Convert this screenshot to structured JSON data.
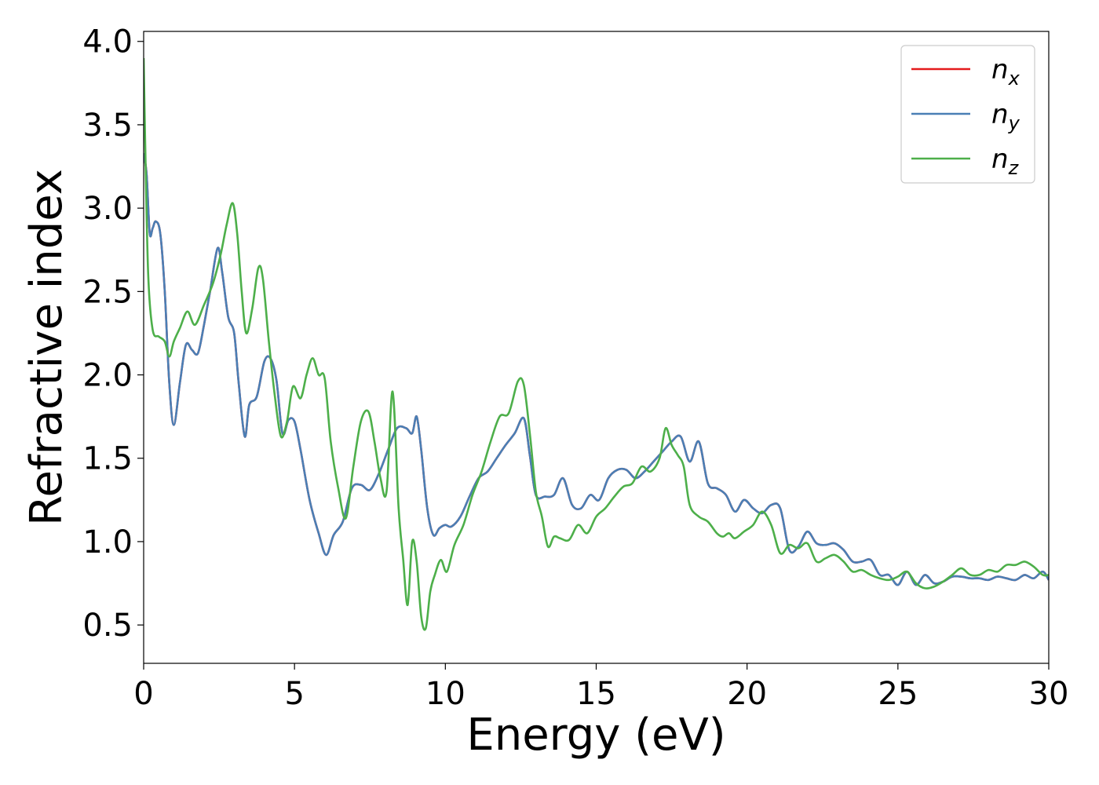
{
  "chart_data": {
    "type": "line",
    "title": "",
    "xlabel": "Energy (eV)",
    "ylabel": "Refractive index",
    "xlim": [
      0,
      30
    ],
    "ylim": [
      0.27,
      4.06
    ],
    "xticks": [
      0,
      5,
      10,
      15,
      20,
      25,
      30
    ],
    "xtick_labels": [
      "0",
      "5",
      "10",
      "15",
      "20",
      "25",
      "30"
    ],
    "yticks": [
      0.5,
      1.0,
      1.5,
      2.0,
      2.5,
      3.0,
      3.5,
      4.0
    ],
    "ytick_labels": [
      "0.5",
      "1.0",
      "1.5",
      "2.0",
      "2.5",
      "3.0",
      "3.5",
      "4.0"
    ],
    "grid": false,
    "legend_position": "top-right",
    "legend": [
      {
        "base": "n",
        "sub": "x",
        "color": "#e41a1c"
      },
      {
        "base": "n",
        "sub": "y",
        "color": "#4a7fb5"
      },
      {
        "base": "n",
        "sub": "z",
        "color": "#4daf4a"
      }
    ],
    "series": [
      {
        "name": "n_x",
        "color": "#e41a1c",
        "x": [
          0,
          0.1,
          0.2,
          0.3,
          0.4,
          0.55,
          0.7,
          0.85,
          1.0,
          1.2,
          1.4,
          1.6,
          1.8,
          2.0,
          2.2,
          2.45,
          2.6,
          2.8,
          3.0,
          3.15,
          3.35,
          3.5,
          3.75,
          4.0,
          4.2,
          4.4,
          4.6,
          4.8,
          5.0,
          5.2,
          5.5,
          5.8,
          6.05,
          6.3,
          6.6,
          6.9,
          7.2,
          7.5,
          7.8,
          8.1,
          8.4,
          8.7,
          8.9,
          9.05,
          9.2,
          9.4,
          9.6,
          9.8,
          10.0,
          10.2,
          10.5,
          10.8,
          11.1,
          11.4,
          11.7,
          12.0,
          12.3,
          12.6,
          12.8,
          13.0,
          13.3,
          13.6,
          13.9,
          14.2,
          14.5,
          14.8,
          15.1,
          15.4,
          15.7,
          16.0,
          16.3,
          16.6,
          16.9,
          17.2,
          17.5,
          17.8,
          18.1,
          18.4,
          18.7,
          19.0,
          19.3,
          19.6,
          19.9,
          20.2,
          20.5,
          20.8,
          21.1,
          21.4,
          21.7,
          22.0,
          22.3,
          22.6,
          22.9,
          23.2,
          23.5,
          23.8,
          24.1,
          24.4,
          24.7,
          25.0,
          25.3,
          25.6,
          25.9,
          26.2,
          26.5,
          26.8,
          27.1,
          27.4,
          27.7,
          28.0,
          28.3,
          28.6,
          28.9,
          29.2,
          29.5,
          29.8,
          30.0
        ],
        "y": [
          3.33,
          3.2,
          2.85,
          2.88,
          2.92,
          2.85,
          2.5,
          1.95,
          1.7,
          1.95,
          2.18,
          2.15,
          2.13,
          2.3,
          2.5,
          2.76,
          2.62,
          2.35,
          2.25,
          1.95,
          1.63,
          1.82,
          1.87,
          2.08,
          2.1,
          1.97,
          1.65,
          1.73,
          1.72,
          1.55,
          1.25,
          1.05,
          0.92,
          1.04,
          1.12,
          1.32,
          1.34,
          1.31,
          1.41,
          1.55,
          1.68,
          1.68,
          1.65,
          1.75,
          1.55,
          1.2,
          1.04,
          1.08,
          1.1,
          1.09,
          1.15,
          1.27,
          1.38,
          1.42,
          1.5,
          1.58,
          1.65,
          1.74,
          1.52,
          1.28,
          1.27,
          1.28,
          1.38,
          1.22,
          1.2,
          1.28,
          1.25,
          1.38,
          1.43,
          1.43,
          1.38,
          1.42,
          1.48,
          1.54,
          1.6,
          1.63,
          1.48,
          1.6,
          1.35,
          1.32,
          1.28,
          1.18,
          1.25,
          1.2,
          1.17,
          1.22,
          1.2,
          0.95,
          0.97,
          1.06,
          0.99,
          0.98,
          0.99,
          0.95,
          0.88,
          0.88,
          0.89,
          0.8,
          0.8,
          0.74,
          0.82,
          0.74,
          0.8,
          0.75,
          0.76,
          0.79,
          0.79,
          0.78,
          0.78,
          0.77,
          0.79,
          0.78,
          0.77,
          0.8,
          0.78,
          0.82,
          0.77
        ]
      },
      {
        "name": "n_y",
        "color": "#4a7fb5",
        "x": [
          0,
          0.1,
          0.2,
          0.3,
          0.4,
          0.55,
          0.7,
          0.85,
          1.0,
          1.2,
          1.4,
          1.6,
          1.8,
          2.0,
          2.2,
          2.45,
          2.6,
          2.8,
          3.0,
          3.15,
          3.35,
          3.5,
          3.75,
          4.0,
          4.2,
          4.4,
          4.6,
          4.8,
          5.0,
          5.2,
          5.5,
          5.8,
          6.05,
          6.3,
          6.6,
          6.9,
          7.2,
          7.5,
          7.8,
          8.1,
          8.4,
          8.7,
          8.9,
          9.05,
          9.2,
          9.4,
          9.6,
          9.8,
          10.0,
          10.2,
          10.5,
          10.8,
          11.1,
          11.4,
          11.7,
          12.0,
          12.3,
          12.6,
          12.8,
          13.0,
          13.3,
          13.6,
          13.9,
          14.2,
          14.5,
          14.8,
          15.1,
          15.4,
          15.7,
          16.0,
          16.3,
          16.6,
          16.9,
          17.2,
          17.5,
          17.8,
          18.1,
          18.4,
          18.7,
          19.0,
          19.3,
          19.6,
          19.9,
          20.2,
          20.5,
          20.8,
          21.1,
          21.4,
          21.7,
          22.0,
          22.3,
          22.6,
          22.9,
          23.2,
          23.5,
          23.8,
          24.1,
          24.4,
          24.7,
          25.0,
          25.3,
          25.6,
          25.9,
          26.2,
          26.5,
          26.8,
          27.1,
          27.4,
          27.7,
          28.0,
          28.3,
          28.6,
          28.9,
          29.2,
          29.5,
          29.8,
          30.0
        ],
        "y": [
          3.33,
          3.2,
          2.85,
          2.88,
          2.92,
          2.85,
          2.5,
          1.95,
          1.7,
          1.95,
          2.18,
          2.15,
          2.13,
          2.3,
          2.5,
          2.76,
          2.62,
          2.35,
          2.25,
          1.95,
          1.63,
          1.82,
          1.87,
          2.08,
          2.1,
          1.97,
          1.65,
          1.73,
          1.72,
          1.55,
          1.25,
          1.05,
          0.92,
          1.04,
          1.12,
          1.32,
          1.34,
          1.31,
          1.41,
          1.55,
          1.68,
          1.68,
          1.65,
          1.75,
          1.55,
          1.2,
          1.04,
          1.08,
          1.1,
          1.09,
          1.15,
          1.27,
          1.38,
          1.42,
          1.5,
          1.58,
          1.65,
          1.74,
          1.52,
          1.28,
          1.27,
          1.28,
          1.38,
          1.22,
          1.2,
          1.28,
          1.25,
          1.38,
          1.43,
          1.43,
          1.38,
          1.42,
          1.48,
          1.54,
          1.6,
          1.63,
          1.48,
          1.6,
          1.35,
          1.32,
          1.28,
          1.18,
          1.25,
          1.2,
          1.17,
          1.22,
          1.2,
          0.95,
          0.97,
          1.06,
          0.99,
          0.98,
          0.99,
          0.95,
          0.88,
          0.88,
          0.89,
          0.8,
          0.8,
          0.74,
          0.82,
          0.74,
          0.8,
          0.75,
          0.76,
          0.79,
          0.79,
          0.78,
          0.78,
          0.77,
          0.79,
          0.78,
          0.77,
          0.8,
          0.78,
          0.82,
          0.77
        ]
      },
      {
        "name": "n_z",
        "color": "#4daf4a",
        "x": [
          0,
          0.05,
          0.15,
          0.3,
          0.5,
          0.7,
          0.85,
          1.0,
          1.2,
          1.45,
          1.7,
          2.0,
          2.3,
          2.55,
          2.75,
          2.95,
          3.1,
          3.25,
          3.4,
          3.6,
          3.8,
          3.95,
          4.15,
          4.35,
          4.55,
          4.75,
          4.95,
          5.2,
          5.4,
          5.6,
          5.8,
          6.0,
          6.2,
          6.45,
          6.7,
          6.95,
          7.2,
          7.45,
          7.65,
          7.85,
          8.05,
          8.25,
          8.45,
          8.6,
          8.75,
          8.9,
          9.05,
          9.2,
          9.35,
          9.5,
          9.65,
          9.85,
          10.05,
          10.3,
          10.6,
          10.9,
          11.2,
          11.5,
          11.8,
          12.1,
          12.4,
          12.6,
          12.8,
          13.0,
          13.2,
          13.4,
          13.6,
          13.8,
          14.1,
          14.4,
          14.7,
          15.0,
          15.3,
          15.6,
          15.9,
          16.2,
          16.5,
          16.8,
          17.1,
          17.3,
          17.5,
          17.7,
          17.9,
          18.1,
          18.4,
          18.7,
          19.0,
          19.2,
          19.4,
          19.6,
          19.9,
          20.2,
          20.5,
          20.8,
          21.1,
          21.4,
          21.7,
          22.0,
          22.3,
          22.6,
          22.9,
          23.2,
          23.5,
          23.8,
          24.1,
          24.4,
          24.7,
          25.0,
          25.3,
          25.6,
          25.9,
          26.2,
          26.5,
          26.8,
          27.1,
          27.4,
          27.7,
          28.0,
          28.3,
          28.6,
          28.9,
          29.2,
          29.5,
          29.8,
          30.0
        ],
        "y": [
          3.9,
          3.4,
          2.6,
          2.27,
          2.23,
          2.2,
          2.11,
          2.2,
          2.28,
          2.38,
          2.3,
          2.42,
          2.55,
          2.72,
          2.9,
          3.03,
          2.85,
          2.5,
          2.25,
          2.4,
          2.64,
          2.58,
          2.2,
          1.87,
          1.63,
          1.72,
          1.93,
          1.86,
          2.0,
          2.1,
          2.0,
          1.98,
          1.6,
          1.32,
          1.14,
          1.45,
          1.72,
          1.78,
          1.6,
          1.38,
          1.3,
          1.9,
          1.2,
          0.9,
          0.62,
          1.0,
          0.88,
          0.55,
          0.48,
          0.7,
          0.8,
          0.89,
          0.82,
          0.98,
          1.1,
          1.28,
          1.42,
          1.6,
          1.75,
          1.77,
          1.96,
          1.94,
          1.65,
          1.3,
          1.15,
          0.97,
          1.03,
          1.02,
          1.01,
          1.1,
          1.05,
          1.15,
          1.2,
          1.27,
          1.33,
          1.35,
          1.45,
          1.42,
          1.5,
          1.68,
          1.58,
          1.52,
          1.45,
          1.22,
          1.15,
          1.12,
          1.05,
          1.03,
          1.05,
          1.02,
          1.06,
          1.1,
          1.18,
          1.1,
          0.93,
          0.98,
          0.96,
          0.99,
          0.88,
          0.9,
          0.92,
          0.88,
          0.82,
          0.83,
          0.8,
          0.78,
          0.77,
          0.79,
          0.82,
          0.75,
          0.72,
          0.73,
          0.76,
          0.8,
          0.84,
          0.8,
          0.8,
          0.83,
          0.82,
          0.86,
          0.86,
          0.88,
          0.85,
          0.8,
          0.8
        ]
      }
    ]
  }
}
